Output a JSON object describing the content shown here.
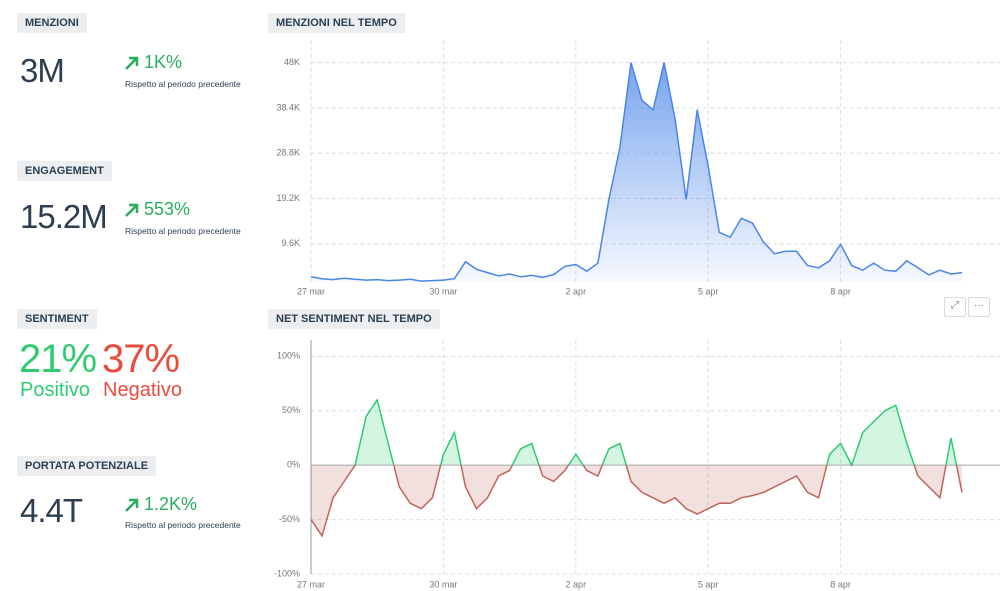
{
  "metrics": [
    {
      "label": "MENZIONI",
      "value": "3M",
      "change": "1K%",
      "note": "Rispetto al periodo precedente"
    },
    {
      "label": "ENGAGEMENT",
      "value": "15.2M",
      "change": "553%",
      "note": "Rispetto al periodo precedente"
    },
    {
      "label": "PORTATA POTENZIALE",
      "value": "4.4T",
      "change": "1.2K%",
      "note": "Rispetto al periodo precedente"
    }
  ],
  "sentiment": {
    "label": "SENTIMENT",
    "positive": "21%",
    "positive_label": "Positivo",
    "negative": "37%",
    "negative_label": "Negativo"
  },
  "chart_data": [
    {
      "type": "area",
      "title": "MENZIONI NEL TEMPO",
      "color": "#4a86e8",
      "grid": true,
      "categories": [
        "27 mar",
        null,
        null,
        null,
        null,
        null,
        null,
        null,
        null,
        null,
        null,
        null,
        "30 mar",
        null,
        null,
        null,
        null,
        null,
        null,
        null,
        null,
        null,
        null,
        null,
        "2 apr",
        null,
        null,
        null,
        null,
        null,
        null,
        null,
        null,
        null,
        null,
        null,
        "5 apr",
        null,
        null,
        null,
        null,
        null,
        null,
        null,
        null,
        null,
        null,
        null,
        "8 apr",
        null,
        null,
        null,
        null,
        null,
        null,
        null,
        null,
        null,
        null,
        null
      ],
      "values": [
        2600,
        2200,
        2000,
        2300,
        2100,
        1900,
        2000,
        1800,
        1900,
        2100,
        1700,
        1800,
        1900,
        2200,
        5800,
        4200,
        3500,
        2800,
        3200,
        2600,
        2900,
        2500,
        3100,
        4800,
        5200,
        3800,
        5500,
        19000,
        30000,
        48000,
        40000,
        38000,
        48000,
        36000,
        19000,
        38000,
        26000,
        12000,
        11000,
        15000,
        14000,
        10000,
        7500,
        8000,
        8000,
        5000,
        4500,
        6000,
        9500,
        5000,
        4000,
        5500,
        4000,
        3800,
        6000,
        4500,
        3000,
        4000,
        3200,
        3500
      ],
      "ylim": [
        1500,
        52800
      ],
      "yticks": [
        {
          "value": 9600,
          "label": "9.6K"
        },
        {
          "value": 19200,
          "label": "19.2K"
        },
        {
          "value": 28800,
          "label": "28.8K"
        },
        {
          "value": 38400,
          "label": "38.4K"
        },
        {
          "value": 48000,
          "label": "48K"
        }
      ]
    },
    {
      "type": "sentiment",
      "title": "NET SENTIMENT NEL TEMPO",
      "color_above": "#2ecc71",
      "color_below": "#c0645a",
      "grid": true,
      "categories": [
        "27 mar",
        null,
        null,
        null,
        null,
        null,
        null,
        null,
        null,
        null,
        null,
        null,
        "30 mar",
        null,
        null,
        null,
        null,
        null,
        null,
        null,
        null,
        null,
        null,
        null,
        "2 apr",
        null,
        null,
        null,
        null,
        null,
        null,
        null,
        null,
        null,
        null,
        null,
        "5 apr",
        null,
        null,
        null,
        null,
        null,
        null,
        null,
        null,
        null,
        null,
        null,
        "8 apr",
        null,
        null,
        null,
        null,
        null,
        null,
        null,
        null,
        null,
        null,
        null
      ],
      "values": [
        -50,
        -65,
        -30,
        -15,
        0,
        45,
        60,
        20,
        -20,
        -35,
        -40,
        -30,
        10,
        30,
        -20,
        -40,
        -30,
        -10,
        -5,
        15,
        20,
        -10,
        -15,
        -5,
        10,
        -5,
        -10,
        15,
        20,
        -15,
        -25,
        -30,
        -35,
        -30,
        -40,
        -45,
        -40,
        -35,
        -35,
        -30,
        -28,
        -25,
        -20,
        -15,
        -10,
        -25,
        -30,
        10,
        20,
        0,
        30,
        40,
        50,
        55,
        20,
        -10,
        -20,
        -30,
        25,
        -25
      ],
      "ylim": [
        -100,
        115
      ],
      "yticks": [
        {
          "value": -100,
          "label": "-100%"
        },
        {
          "value": -50,
          "label": "-50%"
        },
        {
          "value": 0,
          "label": "0%"
        },
        {
          "value": 50,
          "label": "50%"
        },
        {
          "value": 100,
          "label": "100%"
        }
      ]
    }
  ]
}
